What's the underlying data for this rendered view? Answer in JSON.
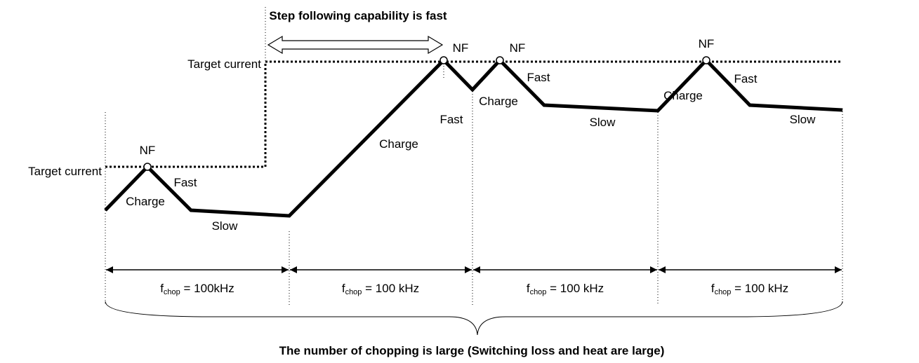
{
  "title": "Step following capability is fast",
  "target_labels": [
    "Target current",
    "Target current"
  ],
  "nf_labels": [
    "NF",
    "NF",
    "NF",
    "NF"
  ],
  "charge_labels": [
    "Charge",
    "Charge",
    "Charge",
    "Charge"
  ],
  "fast_labels": [
    "Fast",
    "Fast",
    "Fast",
    "Fast"
  ],
  "slow_labels": [
    "Slow",
    "Slow",
    "Slow"
  ],
  "periods": [
    {
      "symbol": "f",
      "subscript": "chop",
      "text": " = 100kHz"
    },
    {
      "symbol": "f",
      "subscript": "chop",
      "text": " = 100 kHz"
    },
    {
      "symbol": "f",
      "subscript": "chop",
      "text": " = 100 kHz"
    },
    {
      "symbol": "f",
      "subscript": "chop",
      "text": " = 100 kHz"
    }
  ],
  "footer": "The number of chopping is large (Switching loss and heat are large)"
}
